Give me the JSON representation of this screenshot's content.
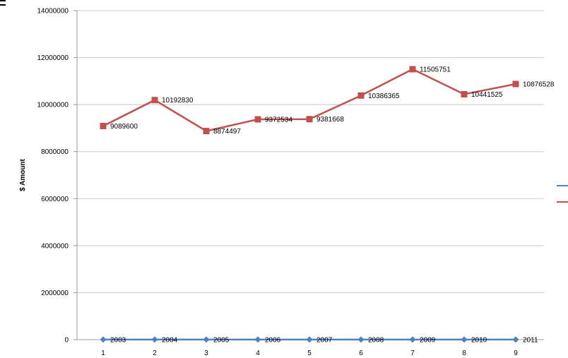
{
  "chart_data": {
    "type": "line",
    "ylabel": "$ Amount",
    "ylim": [
      0,
      14000000
    ],
    "yticks": [
      "0",
      "2000000",
      "4000000",
      "6000000",
      "8000000",
      "10000000",
      "12000000",
      "14000000"
    ],
    "categories": [
      "1",
      "2",
      "3",
      "4",
      "5",
      "6",
      "7",
      "8",
      "9"
    ],
    "grid": true,
    "legend": "right (cropped)",
    "series": [
      {
        "color": "#4f81bd",
        "marker": "diamond",
        "values": [
          2003,
          2004,
          2005,
          2006,
          2007,
          2008,
          2009,
          2010,
          2011
        ],
        "data_labels": [
          "2003",
          "2004",
          "2005",
          "2006",
          "2007",
          "2008",
          "2009",
          "2010",
          "2011"
        ]
      },
      {
        "color": "#c0504d",
        "marker": "square",
        "values": [
          9089600,
          10192830,
          8874497,
          9372534,
          9381668,
          10386365,
          11505751,
          10441525,
          10876528
        ],
        "data_labels": [
          "9089600",
          "10192830",
          "8874497",
          "9372534",
          "9381668",
          "10386365",
          "11505751",
          "10441525",
          "10876528"
        ]
      }
    ]
  }
}
